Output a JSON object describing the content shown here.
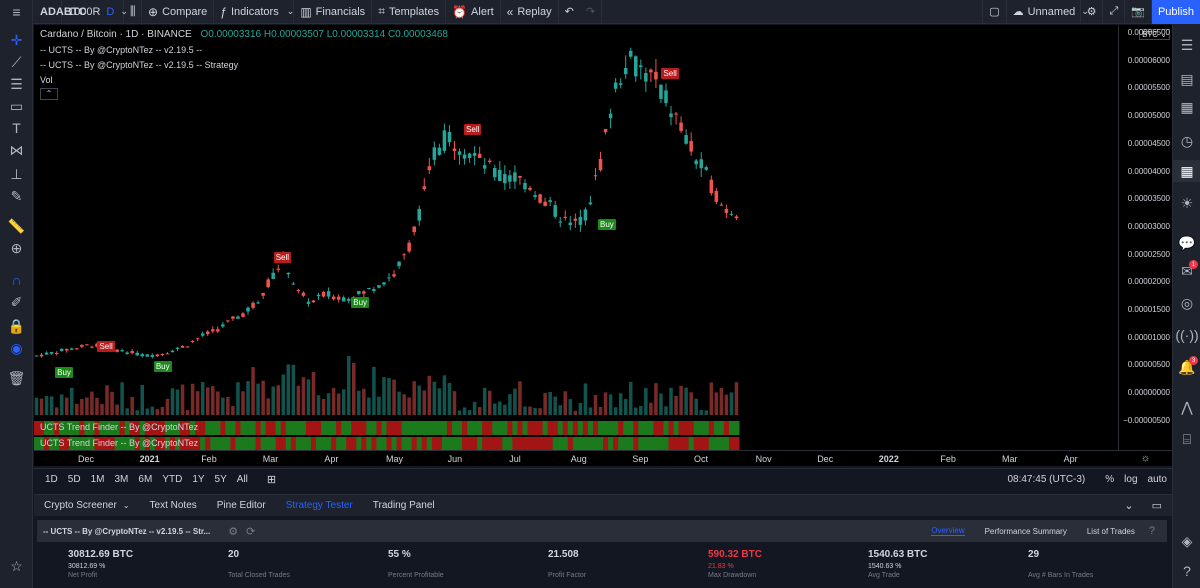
{
  "toolbar": {
    "symbol": "ADABTC",
    "interval": "1000R",
    "interval_flag": "D",
    "compare": "Compare",
    "indicators": "Indicators",
    "financials": "Financials",
    "templates": "Templates",
    "alert": "Alert",
    "replay": "Replay",
    "layout_name": "Unnamed",
    "publish": "Publish"
  },
  "legend": {
    "title": "Cardano / Bitcoin · 1D · BINANCE",
    "ohlc_o": "O0.00003316",
    "ohlc_h": "H0.00003507",
    "ohlc_l": "L0.00003314",
    "ohlc_c": "C0.00003468",
    "study1": "-- UCTS -- By @CryptoNTez -- v2.19.5 --",
    "study2": "-- UCTS -- By @CryptoNTez -- v2.19.5 -- Strategy",
    "study3": "Vol"
  },
  "indicator_panes": [
    "UCTS Trend Finder -- By @CryptoNTez",
    "UCTS Trend Finder -- By @CryptoNTez"
  ],
  "currency": "BTC",
  "price_labels": [
    "0.00006500",
    "0.00006000",
    "0.00005500",
    "0.00005000",
    "0.00004500",
    "0.00004000",
    "0.00003500",
    "0.00003000",
    "0.00002500",
    "0.00002000",
    "0.00001500",
    "0.00001000",
    "0.00000500",
    "0.00000000",
    "−0.00000500"
  ],
  "time_labels": [
    "Dec",
    "2021",
    "Feb",
    "Mar",
    "Apr",
    "May",
    "Jun",
    "Jul",
    "Aug",
    "Sep",
    "Oct",
    "Nov",
    "Dec",
    "2022",
    "Feb",
    "Mar",
    "Apr"
  ],
  "signals": [
    {
      "type": "sell",
      "label": "Sell"
    },
    {
      "type": "buy",
      "label": "Buy"
    },
    {
      "type": "buy",
      "label": "Buy"
    },
    {
      "type": "sell",
      "label": "Sell"
    },
    {
      "type": "buy",
      "label": "Buy"
    },
    {
      "type": "sell",
      "label": "Sell"
    },
    {
      "type": "buy",
      "label": "Buy"
    },
    {
      "type": "sell",
      "label": "Sell"
    }
  ],
  "range_buttons": [
    "1D",
    "5D",
    "1M",
    "3M",
    "6M",
    "YTD",
    "1Y",
    "5Y",
    "All"
  ],
  "clock": "08:47:45 (UTC-3)",
  "axis_options": [
    "%",
    "log",
    "auto"
  ],
  "bottom_tabs": [
    "Crypto Screener",
    "Text Notes",
    "Pine Editor",
    "Strategy Tester",
    "Trading Panel"
  ],
  "strategy": {
    "name": "-- UCTS -- By @CryptoNTez -- v2.19.5 -- Str...",
    "tabs": [
      "Overview",
      "Performance Summary",
      "List of Trades"
    ]
  },
  "stats": [
    {
      "value": "30812.69 BTC",
      "sub": "30812.69 %",
      "label": "Net Profit"
    },
    {
      "value": "20",
      "sub": "",
      "label": "Total Closed Trades"
    },
    {
      "value": "55 %",
      "sub": "",
      "label": "Percent Profitable"
    },
    {
      "value": "21.508",
      "sub": "",
      "label": "Profit Factor"
    },
    {
      "value": "590.32 BTC",
      "sub": "21.83 %",
      "label": "Max Drawdown"
    },
    {
      "value": "1540.63 BTC",
      "sub": "1540.63 %",
      "label": "Avg Trade"
    },
    {
      "value": "29",
      "sub": "",
      "label": "Avg # Bars In Trades"
    }
  ],
  "chart_data": {
    "type": "candlestick",
    "symbol": "ADABTC",
    "y_unit": "BTC",
    "ylim": [
      -5e-06,
      6.5e-05
    ],
    "x_range": [
      "2020-11",
      "2022-04"
    ],
    "close_series": [
      8.5e-06,
      9e-06,
      9.5e-06,
      1e-05,
      1.05e-05,
      1e-05,
      9.5e-06,
      9e-06,
      8.5e-06,
      8.8e-06,
      9.5e-06,
      1.05e-05,
      1.2e-05,
      1.3e-05,
      1.45e-05,
      1.6e-05,
      1.8e-05,
      2.2e-05,
      2.6e-05,
      2e-05,
      1.8e-05,
      1.95e-05,
      1.9e-05,
      1.9e-05,
      2e-05,
      2.15e-05,
      2.3e-05,
      2.7e-05,
      3.5e-05,
      4.5e-05,
      4.8e-05,
      4.6e-05,
      4.4e-05,
      4.2e-05,
      4e-05,
      4.05e-05,
      3.9e-05,
      3.6e-05,
      3.4e-05,
      3.15e-05,
      3.4e-05,
      4.2e-05,
      5.5e-05,
      6.2e-05,
      6e-05,
      5.8e-05,
      5.4e-05,
      4.9e-05,
      4.4e-05,
      4e-05,
      3.5e-05,
      3.45e-05
    ]
  }
}
